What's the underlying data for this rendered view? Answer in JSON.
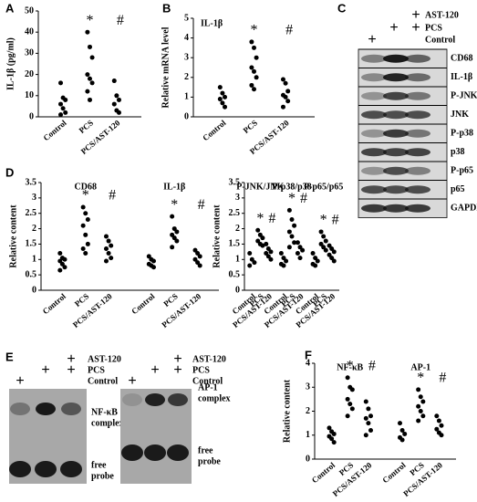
{
  "chart_data": [
    {
      "type": "dot",
      "panel": "A",
      "y_label": "IL-1β (pg/ml)",
      "ylim": [
        0,
        50
      ],
      "yticks": [
        0,
        10,
        20,
        30,
        40,
        50
      ],
      "categories": [
        "Control",
        "PCS",
        "PCS/AST-120"
      ],
      "groups": [
        {
          "values": [
            [
              16,
              9,
              8,
              6,
              4,
              2,
              1
            ],
            [
              40,
              33,
              28,
              20,
              18,
              16,
              12,
              8
            ],
            [
              17,
              10,
              8,
              6,
              3,
              2
            ]
          ],
          "marks": [
            null,
            "*",
            "#"
          ]
        }
      ]
    },
    {
      "type": "dot",
      "panel": "B",
      "y_label": "Relative mRNA level",
      "ylim": [
        0,
        5
      ],
      "yticks": [
        0,
        1,
        2,
        3,
        4,
        5
      ],
      "categories": [
        "Control",
        "PCS",
        "PCS/AST-120"
      ],
      "groups": [
        {
          "name": "IL-1β",
          "values": [
            [
              1.5,
              1.2,
              1.0,
              0.9,
              0.7,
              0.5
            ],
            [
              3.8,
              3.5,
              3.0,
              2.5,
              2.3,
              2.0,
              1.6,
              1.4
            ],
            [
              1.9,
              1.7,
              1.3,
              1.1,
              1.0,
              0.8,
              0.5
            ]
          ],
          "marks": [
            null,
            "*",
            "#"
          ]
        }
      ]
    },
    {
      "type": "dot",
      "panel": "D",
      "y_label": "Relative content",
      "ylim": [
        0,
        3.5
      ],
      "yticks": [
        0,
        0.5,
        1,
        1.5,
        2,
        2.5,
        3,
        3.5
      ],
      "categories": [
        "Control",
        "PCS",
        "PCS/AST-120"
      ],
      "groups": [
        {
          "name": "CD68",
          "values": [
            [
              1.2,
              1.05,
              1.0,
              0.95,
              0.85,
              0.75,
              0.65
            ],
            [
              2.7,
              2.5,
              2.3,
              2.1,
              1.8,
              1.5,
              1.35,
              1.2
            ],
            [
              1.75,
              1.6,
              1.45,
              1.35,
              1.2,
              1.05,
              0.95
            ]
          ],
          "marks": [
            null,
            "*",
            "#"
          ]
        },
        {
          "name": "IL-1β",
          "values": [
            [
              1.1,
              1.0,
              0.95,
              0.85,
              0.8,
              0.75
            ],
            [
              2.4,
              2.0,
              1.9,
              1.8,
              1.7,
              1.6,
              1.4
            ],
            [
              1.3,
              1.2,
              1.1,
              1.0,
              0.9,
              0.8
            ]
          ],
          "marks": [
            null,
            "*",
            "#"
          ]
        }
      ]
    },
    {
      "type": "dot",
      "y_label": "Relative content",
      "ylim": [
        0,
        3.5
      ],
      "yticks": [
        0,
        0.5,
        1,
        1.5,
        2,
        2.5,
        3,
        3.5
      ],
      "categories": [
        "Control",
        "PCS",
        "PCS/AST-120"
      ],
      "groups": [
        {
          "name": "P-JNK/JNK",
          "values": [
            [
              1.2,
              1.0,
              0.9,
              0.8
            ],
            [
              1.95,
              1.8,
              1.7,
              1.6,
              1.5,
              1.45
            ],
            [
              1.5,
              1.35,
              1.25,
              1.2,
              1.1,
              1.0
            ]
          ],
          "marks": [
            null,
            "*",
            "#"
          ]
        },
        {
          "name": "P-p38/p38",
          "values": [
            [
              1.2,
              1.05,
              0.95,
              0.85,
              0.8
            ],
            [
              2.6,
              2.3,
              2.1,
              1.9,
              1.75,
              1.55,
              1.4
            ],
            [
              1.55,
              1.4,
              1.3,
              1.2,
              1.05
            ]
          ],
          "marks": [
            null,
            "*",
            "#"
          ]
        },
        {
          "name": "P-p65/p65",
          "values": [
            [
              1.2,
              1.05,
              0.95,
              0.85,
              0.8
            ],
            [
              1.9,
              1.75,
              1.6,
              1.5,
              1.4,
              1.3
            ],
            [
              1.45,
              1.35,
              1.25,
              1.15,
              1.05,
              0.95
            ]
          ],
          "marks": [
            null,
            "*",
            "#"
          ]
        }
      ]
    },
    {
      "type": "dot",
      "panel": "F",
      "y_label": "Relative content",
      "ylim": [
        0,
        4
      ],
      "yticks": [
        0,
        1,
        2,
        3,
        4
      ],
      "categories": [
        "Control",
        "PCS",
        "PCS/AST-120"
      ],
      "groups": [
        {
          "name": "NF-κB",
          "values": [
            [
              1.3,
              1.15,
              1.05,
              0.95,
              0.85,
              0.7
            ],
            [
              3.4,
              3.0,
              2.9,
              2.5,
              2.3,
              2.1,
              1.8
            ],
            [
              2.4,
              2.1,
              1.8,
              1.7,
              1.5,
              1.2,
              1.0
            ]
          ],
          "marks": [
            null,
            "*",
            "#"
          ]
        },
        {
          "name": "AP-1",
          "values": [
            [
              1.5,
              1.2,
              1.05,
              0.9,
              0.8
            ],
            [
              2.9,
              2.6,
              2.4,
              2.2,
              2.0,
              1.8,
              1.6
            ],
            [
              1.8,
              1.6,
              1.4,
              1.25,
              1.1,
              1.0
            ]
          ],
          "marks": [
            null,
            "*",
            "#"
          ]
        }
      ]
    }
  ],
  "blots": [
    {
      "panel": "C",
      "treatment_rows": [
        {
          "label": "AST-120",
          "lanes": [
            null,
            null,
            "+"
          ]
        },
        {
          "label": "PCS",
          "lanes": [
            null,
            "+",
            "+"
          ]
        },
        {
          "label": "Control",
          "lanes": [
            "+",
            null,
            null
          ]
        }
      ],
      "bands": [
        "CD68",
        "IL-1β",
        "P-JNK",
        "JNK",
        "P-p38",
        "p38",
        "P-p65",
        "p65",
        "GAPDH"
      ]
    },
    {
      "panel": "E",
      "gels": [
        {
          "treatment_rows": [
            {
              "label": "AST-120",
              "lanes": [
                null,
                null,
                "+"
              ]
            },
            {
              "label": "PCS",
              "lanes": [
                null,
                "+",
                "+"
              ]
            },
            {
              "label": "Control",
              "lanes": [
                "+",
                null,
                null
              ]
            }
          ],
          "labels": [
            [
              "NF-κB",
              "complex"
            ],
            [
              "free",
              "probe"
            ]
          ]
        },
        {
          "treatment_rows": [
            {
              "label": "AST-120",
              "lanes": [
                null,
                null,
                "+"
              ]
            },
            {
              "label": "PCS",
              "lanes": [
                null,
                "+",
                "+"
              ]
            },
            {
              "label": "Control",
              "lanes": [
                "+",
                null,
                null
              ]
            }
          ],
          "labels": [
            [
              "AP-1",
              "complex"
            ],
            [
              "free",
              "probe"
            ]
          ]
        }
      ]
    }
  ]
}
